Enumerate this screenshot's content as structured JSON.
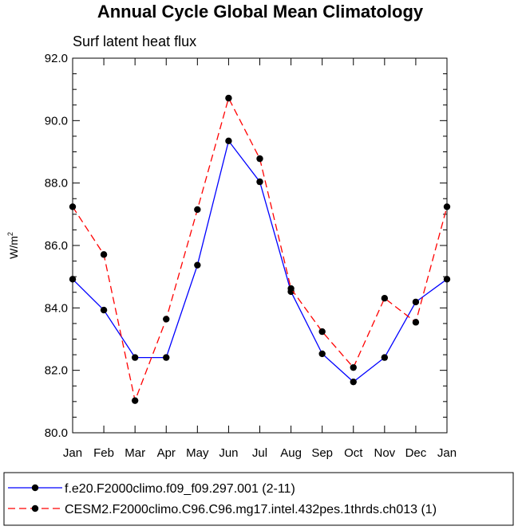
{
  "chart_data": {
    "type": "line",
    "title": "Annual Cycle Global Mean Climatology",
    "subtitle": "Surf latent heat flux",
    "xlabel": "",
    "ylabel": "W/m",
    "ylabel_superscript": "2",
    "categories": [
      "Jan",
      "Feb",
      "Mar",
      "Apr",
      "May",
      "Jun",
      "Jul",
      "Aug",
      "Sep",
      "Oct",
      "Nov",
      "Dec",
      "Jan"
    ],
    "ylim": [
      80.0,
      92.0
    ],
    "yticks": [
      80.0,
      82.0,
      84.0,
      86.0,
      88.0,
      90.0,
      92.0
    ],
    "ytick_labels": [
      "80.0",
      "82.0",
      "84.0",
      "86.0",
      "88.0",
      "90.0",
      "92.0"
    ],
    "grid": false,
    "legend_position": "bottom",
    "series": [
      {
        "name": "f.e20.F2000climo.f09_f09.297.001 (2-11)",
        "color": "#0000ff",
        "dash": "solid",
        "values": [
          84.92,
          83.93,
          82.41,
          82.41,
          85.37,
          89.35,
          88.04,
          84.52,
          82.53,
          81.63,
          82.41,
          84.19,
          84.92
        ]
      },
      {
        "name": "CESM2.F2000climo.C96.C96.mg17.intel.432pes.1thrds.ch013 (1)",
        "color": "#ff0000",
        "dash": "dashed",
        "values": [
          87.24,
          85.71,
          81.03,
          83.64,
          87.15,
          90.72,
          88.78,
          84.62,
          83.24,
          82.09,
          84.31,
          83.54,
          87.24
        ]
      }
    ]
  }
}
